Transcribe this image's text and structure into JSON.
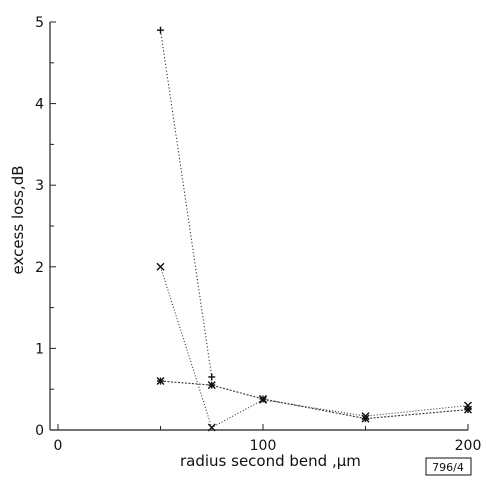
{
  "chart_data": {
    "type": "line",
    "xlabel": "radius second bend ,µm",
    "ylabel": "excess loss,dB",
    "xlim": [
      0,
      200
    ],
    "ylim": [
      0,
      5
    ],
    "x_ticks": [
      "0",
      "100",
      "200"
    ],
    "y_ticks": [
      "0",
      "1",
      "2",
      "3",
      "4",
      "5"
    ],
    "grid": false,
    "series": [
      {
        "marker": "+",
        "x": [
          50,
          75
        ],
        "y": [
          4.9,
          0.65
        ]
      },
      {
        "marker": "x",
        "x": [
          50,
          75,
          100,
          150,
          200
        ],
        "y": [
          2.0,
          0.03,
          0.37,
          0.17,
          0.3
        ]
      },
      {
        "marker": "*",
        "x": [
          50,
          75,
          100,
          150,
          200
        ],
        "y": [
          0.6,
          0.55,
          0.38,
          0.14,
          0.25
        ]
      }
    ],
    "figure_code": "796/4"
  }
}
